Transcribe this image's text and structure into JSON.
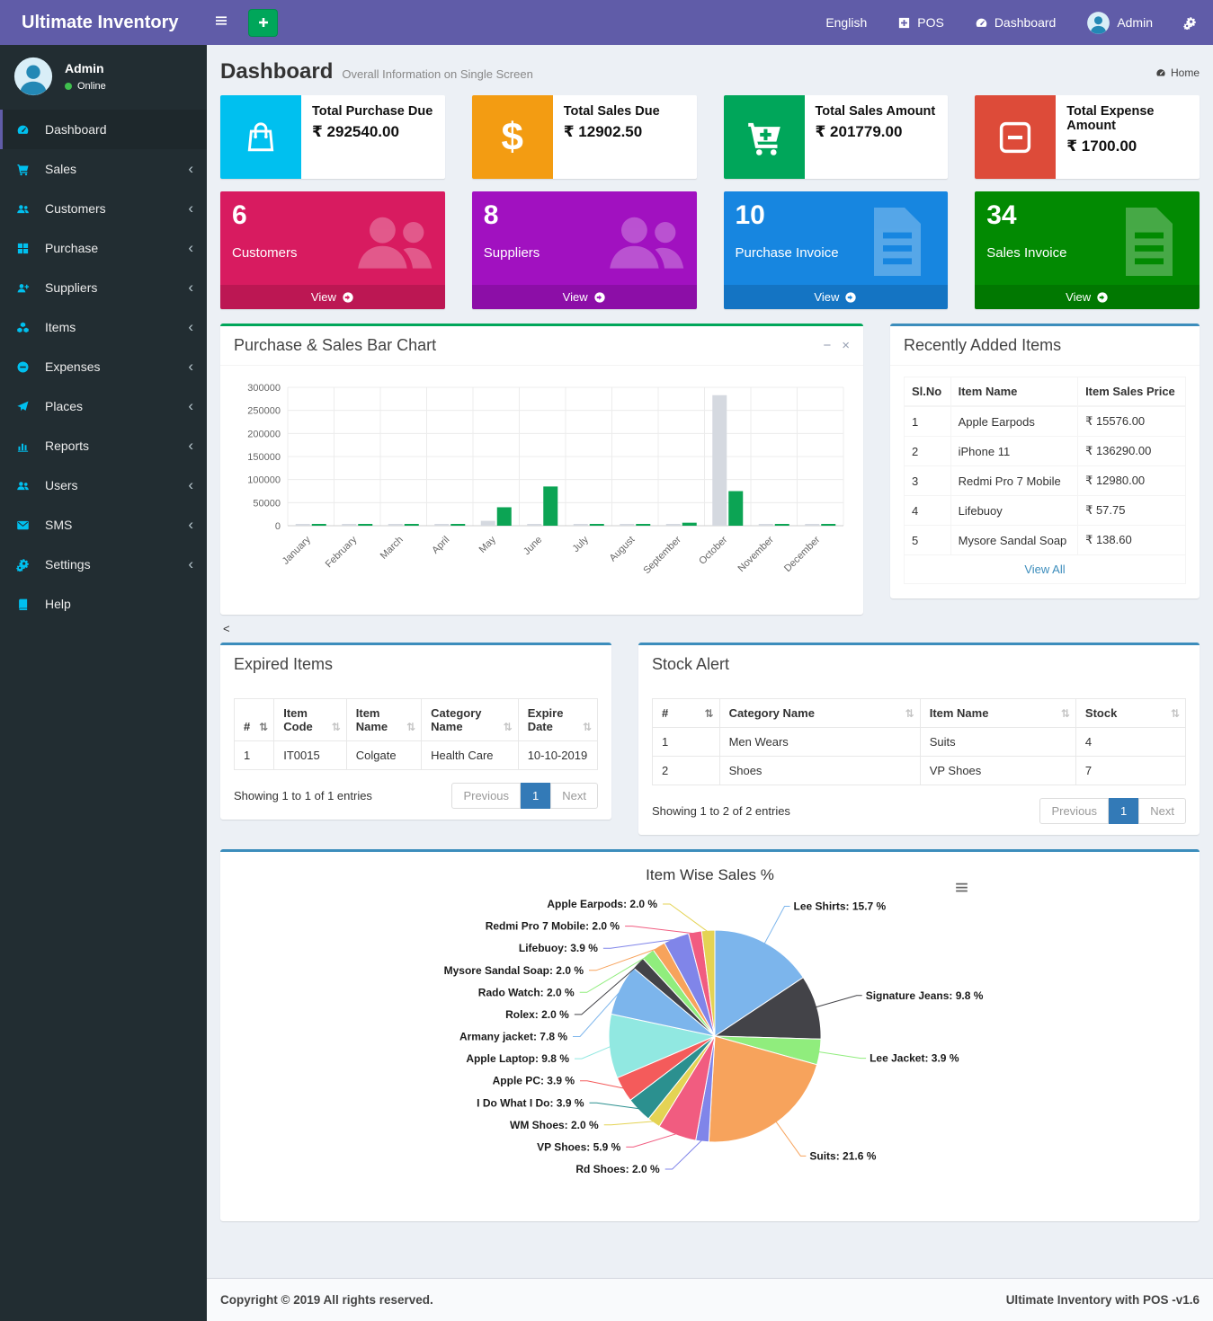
{
  "colors": {
    "navbar": "#605ca8",
    "sidebar": "#222d32",
    "sidebar_icon": "#00c0ef",
    "panel_green": "#00a65a",
    "panel_blue": "#3c8dbc",
    "link": "#3c8dbc",
    "pagination_active": "#337ab7"
  },
  "navbar": {
    "brand": "Ultimate Inventory",
    "menu_icon": "bars",
    "add_icon": "plus",
    "language_label": "English",
    "pos_label": "POS",
    "pos_icon": "plus-square",
    "dashboard_label": "Dashboard",
    "dashboard_icon": "tachometer",
    "user_label": "Admin",
    "user_icon": "avatar",
    "settings_icon": "cogs"
  },
  "sidebar": {
    "user": {
      "name": "Admin",
      "status": "Online",
      "avatar_icon": "avatar"
    },
    "items": [
      {
        "label": "Dashboard",
        "icon": "tachometer",
        "ko": "#1e282c",
        "active": true,
        "arrow": false
      },
      {
        "label": "Sales",
        "icon": "cart",
        "arrow": true
      },
      {
        "label": "Customers",
        "icon": "users",
        "arrow": true
      },
      {
        "label": "Purchase",
        "icon": "grid",
        "arrow": true
      },
      {
        "label": "Suppliers",
        "icon": "user-plus",
        "arrow": true
      },
      {
        "label": "Items",
        "icon": "cubes",
        "arrow": true
      },
      {
        "label": "Expenses",
        "icon": "minus-circle",
        "ko": "#222d32",
        "arrow": true
      },
      {
        "label": "Places",
        "icon": "paper-plane",
        "arrow": true
      },
      {
        "label": "Reports",
        "icon": "bar-chart",
        "arrow": true
      },
      {
        "label": "Users",
        "icon": "users",
        "arrow": true
      },
      {
        "label": "SMS",
        "icon": "envelope",
        "ko": "#222d32",
        "arrow": true
      },
      {
        "label": "Settings",
        "icon": "cogs",
        "ko": "#222d32",
        "arrow": true
      },
      {
        "label": "Help",
        "icon": "book",
        "ko": "#222d32",
        "arrow": false
      }
    ],
    "arrow_glyph": "‹"
  },
  "page": {
    "title": "Dashboard",
    "subtitle": "Overall Information on Single Screen",
    "breadcrumb": "Home",
    "breadcrumb_icon": "tachometer"
  },
  "stat_cards": [
    {
      "label": "Total Purchase Due",
      "value": "₹ 292540.00",
      "icon": "shopping-bag",
      "color": "#00c0ef"
    },
    {
      "label": "Total Sales Due",
      "value": "₹ 12902.50",
      "icon": "dollar",
      "color": "#f39c12"
    },
    {
      "label": "Total Sales Amount",
      "value": "₹ 201779.00",
      "icon": "cart-plus",
      "color": "#00a65a"
    },
    {
      "label": "Total Expense Amount",
      "value": "₹ 1700.00",
      "icon": "minus-square",
      "color": "#dd4b39"
    }
  ],
  "info_boxes": [
    {
      "count": "6",
      "label": "Customers",
      "icon": "users",
      "color": "#d81b60",
      "view_label": "View",
      "view_icon": "arrow-circle-right"
    },
    {
      "count": "8",
      "label": "Suppliers",
      "icon": "users",
      "color": "#a111c0",
      "view_label": "View",
      "view_icon": "arrow-circle-right"
    },
    {
      "count": "10",
      "label": "Purchase Invoice",
      "icon": "file-text",
      "color": "#1786e0",
      "view_label": "View",
      "view_icon": "arrow-circle-right"
    },
    {
      "count": "34",
      "label": "Sales Invoice",
      "icon": "file-text",
      "color": "#028a02",
      "view_label": "View",
      "view_icon": "arrow-circle-right"
    }
  ],
  "bar_panel": {
    "title": "Purchase & Sales Bar Chart",
    "min_icon": "minus",
    "close_icon": "close"
  },
  "recent_items": {
    "title": "Recently Added Items",
    "headers": [
      "Sl.No",
      "Item Name",
      "Item Sales Price"
    ],
    "rows": [
      {
        "no": "1",
        "name": "Apple Earpods",
        "price": "₹ 15576.00"
      },
      {
        "no": "2",
        "name": "iPhone 11",
        "price": "₹ 136290.00"
      },
      {
        "no": "3",
        "name": "Redmi Pro 7 Mobile",
        "price": "₹ 12980.00"
      },
      {
        "no": "4",
        "name": "Lifebuoy",
        "price": "₹ 57.75"
      },
      {
        "no": "5",
        "name": "Mysore Sandal Soap",
        "price": "₹ 138.60"
      }
    ],
    "footer_link": "View All"
  },
  "stray_text": "<",
  "expired_items": {
    "title": "Expired Items",
    "headers": [
      {
        "label": "#",
        "sort": "sort-desc"
      },
      {
        "label": "Item Code",
        "sort": "sort"
      },
      {
        "label": "Item Name",
        "sort": "sort"
      },
      {
        "label": "Category Name",
        "sort": "sort"
      },
      {
        "label": "Expire Date",
        "sort": "sort"
      }
    ],
    "rows": [
      {
        "n": "1",
        "code": "IT0015",
        "name": "Colgate",
        "category": "Health Care",
        "date": "10-10-2019"
      }
    ],
    "summary": "Showing 1 to 1 of 1 entries",
    "pagination": {
      "prev": "Previous",
      "page": "1",
      "next": "Next"
    }
  },
  "stock_alert": {
    "title": "Stock Alert",
    "headers": [
      {
        "label": "#",
        "sort": "sort-desc"
      },
      {
        "label": "Category Name",
        "sort": "sort"
      },
      {
        "label": "Item Name",
        "sort": "sort"
      },
      {
        "label": "Stock",
        "sort": "sort"
      }
    ],
    "rows": [
      {
        "n": "1",
        "category": "Men Wears",
        "item": "Suits",
        "stock": "4"
      },
      {
        "n": "2",
        "category": "Shoes",
        "item": "VP Shoes",
        "stock": "7"
      }
    ],
    "summary": "Showing 1 to 2 of 2 entries",
    "pagination": {
      "prev": "Previous",
      "page": "1",
      "next": "Next"
    }
  },
  "pie_panel": {
    "title": "Item Wise Sales %",
    "menu_icon": "menu"
  },
  "footer": {
    "left": "Copyright © 2019 All rights reserved.",
    "right": "Ultimate Inventory with POS -v1.6"
  },
  "chart_data": [
    {
      "type": "bar",
      "title": "Purchase & Sales Bar Chart",
      "categories": [
        "January",
        "February",
        "March",
        "April",
        "May",
        "June",
        "July",
        "August",
        "September",
        "October",
        "November",
        "December"
      ],
      "series": [
        {
          "name": "Purchase",
          "color": "#d5d9e0",
          "values": [
            1500,
            1500,
            1500,
            1200,
            10500,
            3500,
            1500,
            1500,
            1500,
            283000,
            1500,
            1500
          ]
        },
        {
          "name": "Sales",
          "color": "#0ca454",
          "values": [
            2500,
            2500,
            2500,
            2500,
            40000,
            85000,
            2500,
            2500,
            6500,
            75000,
            2500,
            2500
          ]
        }
      ],
      "xlabel": "",
      "ylabel": "",
      "ylim": [
        0,
        300000
      ],
      "ytick_step": 50000,
      "grid": true,
      "legend": false
    },
    {
      "type": "pie",
      "title": "Item Wise Sales %",
      "label_format": "{label}: {value} %",
      "slices": [
        {
          "label": "Lee Shirts",
          "value": 15.7,
          "color": "#7cb5ec"
        },
        {
          "label": "Signature Jeans",
          "value": 9.8,
          "color": "#434348"
        },
        {
          "label": "Lee Jacket",
          "value": 3.9,
          "color": "#90ed7d"
        },
        {
          "label": "Suits",
          "value": 21.6,
          "color": "#f7a35c"
        },
        {
          "label": "Rd Shoes",
          "value": 2.0,
          "color": "#8085e9"
        },
        {
          "label": "VP Shoes",
          "value": 5.9,
          "color": "#f15c80"
        },
        {
          "label": "WM Shoes",
          "value": 2.0,
          "color": "#e4d354"
        },
        {
          "label": "I Do What I Do",
          "value": 3.9,
          "color": "#2b908f"
        },
        {
          "label": "Apple PC",
          "value": 3.9,
          "color": "#f45b5b"
        },
        {
          "label": "Apple Laptop",
          "value": 9.8,
          "color": "#91e8e1"
        },
        {
          "label": "Armany jacket",
          "value": 7.8,
          "color": "#7cb5ec"
        },
        {
          "label": "Rolex",
          "value": 2.0,
          "color": "#434348"
        },
        {
          "label": "Rado Watch",
          "value": 2.0,
          "color": "#90ed7d"
        },
        {
          "label": "Mysore Sandal Soap",
          "value": 2.0,
          "color": "#f7a35c"
        },
        {
          "label": "Lifebuoy",
          "value": 3.9,
          "color": "#8085e9"
        },
        {
          "label": "Redmi Pro 7 Mobile",
          "value": 2.0,
          "color": "#f15c80"
        },
        {
          "label": "Apple Earpods",
          "value": 2.0,
          "color": "#e4d354"
        }
      ]
    }
  ]
}
